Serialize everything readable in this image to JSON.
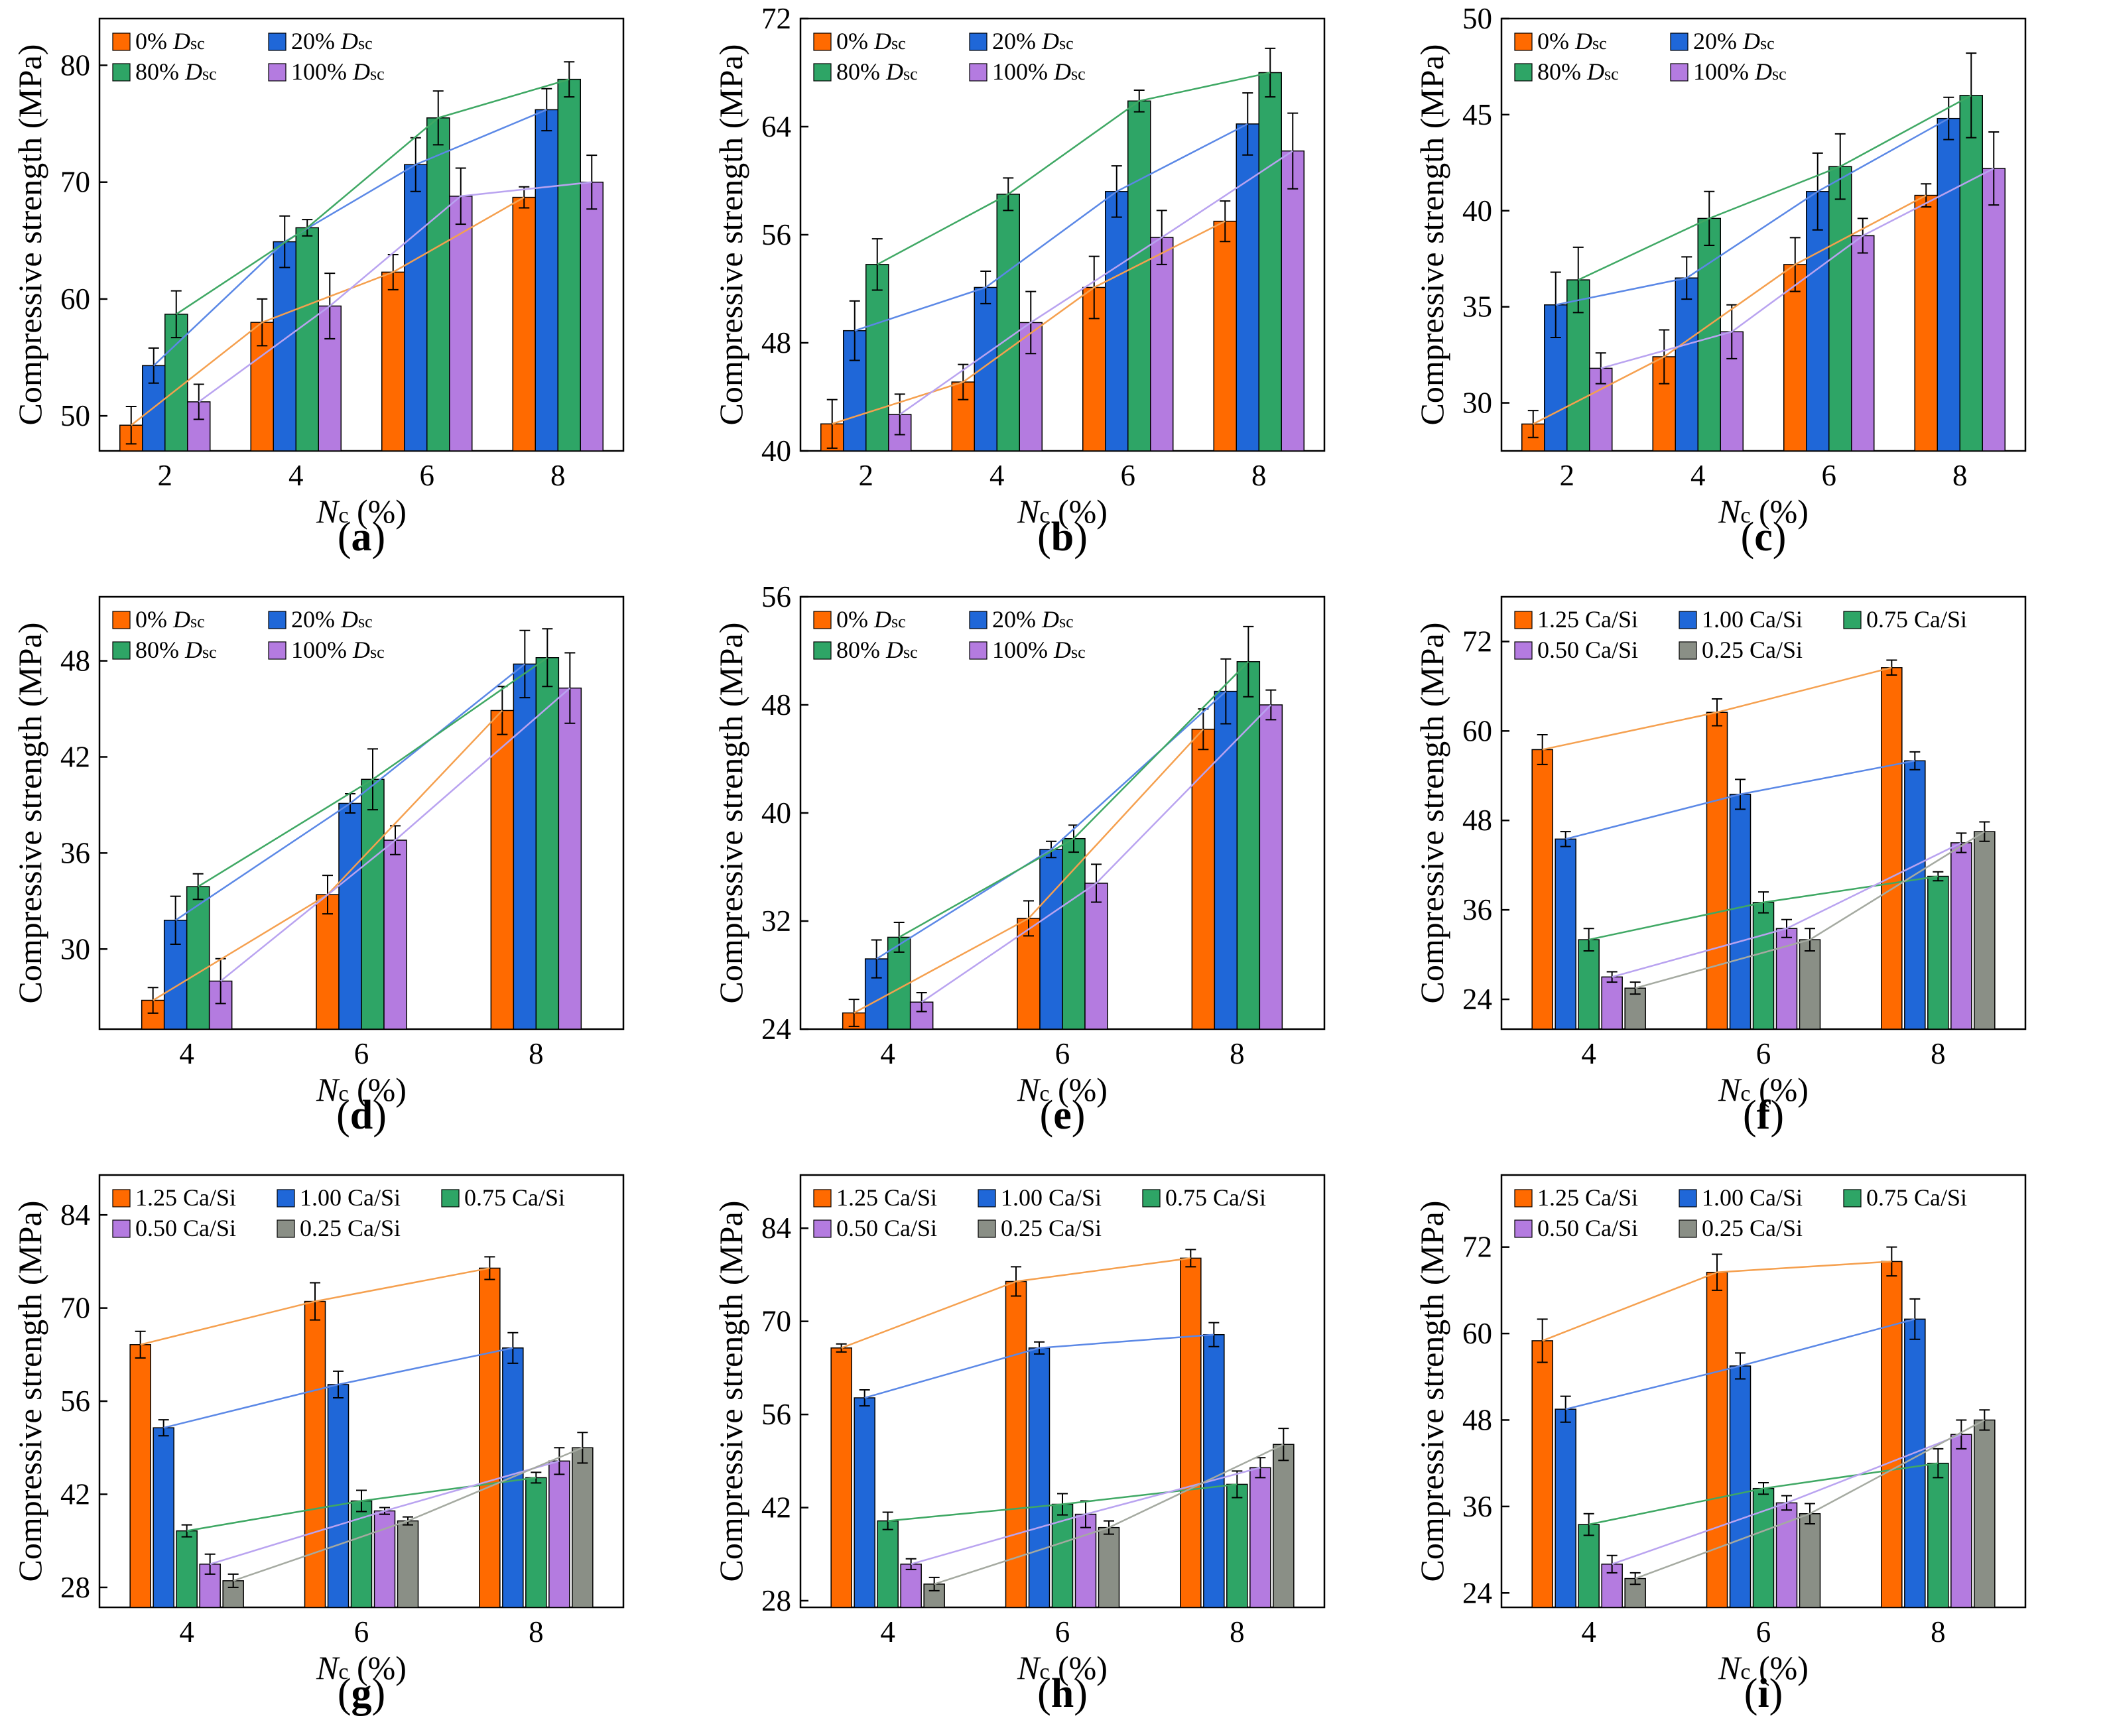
{
  "figure": {
    "title": ""
  },
  "colors": {
    "orange": "#FF6A00",
    "blue": "#1F67D8",
    "green": "#2EA566",
    "purple": "#B47BE0",
    "gray": "#8A8F86",
    "orange_line": "#F5A04F",
    "blue_line": "#5B88E6",
    "green_line": "#3FA864",
    "purple_line": "#B9A3F0",
    "gray_line": "#A5AAA1"
  },
  "chart_data": [
    {
      "id": "a",
      "type": "bar",
      "panel_label": "a",
      "ylabel": "Compressive strength (MPa)",
      "xlabel": "Nc (%)",
      "categories": [
        "2",
        "4",
        "6",
        "8"
      ],
      "ylim": [
        47,
        84
      ],
      "yticks": [
        50,
        60,
        70,
        80
      ],
      "ytick_labels": [
        "50",
        "60",
        "70",
        "80"
      ],
      "legend_cols": 2,
      "series": [
        {
          "name": "0% Dsc",
          "pre": "0% ",
          "ital": "D",
          "subs": "sc",
          "color": "orange",
          "line": "orange_line",
          "values": [
            49.2,
            58.0,
            62.3,
            68.7
          ],
          "errors": [
            1.6,
            2.0,
            1.5,
            0.9
          ]
        },
        {
          "name": "20% Dsc",
          "pre": "20% ",
          "ital": "D",
          "subs": "sc",
          "color": "blue",
          "line": "blue_line",
          "values": [
            54.3,
            64.9,
            71.5,
            76.2
          ],
          "errors": [
            1.5,
            2.2,
            2.3,
            1.8
          ]
        },
        {
          "name": "80% Dsc",
          "pre": "80% ",
          "ital": "D",
          "subs": "sc",
          "color": "green",
          "line": "green_line",
          "values": [
            58.7,
            66.1,
            75.5,
            78.8
          ],
          "errors": [
            2.0,
            0.7,
            2.3,
            1.5
          ]
        },
        {
          "name": "100% Dsc",
          "pre": "100% ",
          "ital": "D",
          "subs": "sc",
          "color": "purple",
          "line": "purple_line",
          "values": [
            51.2,
            59.4,
            68.8,
            70.0
          ],
          "errors": [
            1.5,
            2.8,
            2.4,
            2.3
          ]
        }
      ]
    },
    {
      "id": "b",
      "type": "bar",
      "panel_label": "b",
      "ylabel": "Compressive strength (MPa)",
      "xlabel": "Nc (%)",
      "categories": [
        "2",
        "4",
        "6",
        "8"
      ],
      "ylim": [
        40,
        72
      ],
      "yticks": [
        40,
        48,
        56,
        64,
        72
      ],
      "ytick_labels": [
        "40",
        "48",
        "56",
        "64",
        "72"
      ],
      "legend_cols": 2,
      "series": [
        {
          "name": "0% Dsc",
          "pre": "0% ",
          "ital": "D",
          "subs": "sc",
          "color": "orange",
          "line": "orange_line",
          "values": [
            42.0,
            45.1,
            52.1,
            57.0
          ],
          "errors": [
            1.8,
            1.3,
            2.3,
            1.5
          ]
        },
        {
          "name": "20% Dsc",
          "pre": "20% ",
          "ital": "D",
          "subs": "sc",
          "color": "blue",
          "line": "blue_line",
          "values": [
            48.9,
            52.1,
            59.2,
            64.2
          ],
          "errors": [
            2.2,
            1.2,
            1.9,
            2.3
          ]
        },
        {
          "name": "80% Dsc",
          "pre": "80% ",
          "ital": "D",
          "subs": "sc",
          "color": "green",
          "line": "green_line",
          "values": [
            53.8,
            59.0,
            65.9,
            68.0
          ],
          "errors": [
            1.9,
            1.2,
            0.8,
            1.8
          ]
        },
        {
          "name": "100% Dsc",
          "pre": "100% ",
          "ital": "D",
          "subs": "sc",
          "color": "purple",
          "line": "purple_line",
          "values": [
            42.7,
            49.5,
            55.8,
            62.2
          ],
          "errors": [
            1.5,
            2.3,
            2.0,
            2.8
          ]
        }
      ]
    },
    {
      "id": "c",
      "type": "bar",
      "panel_label": "c",
      "ylabel": "Compressive strength (MPa)",
      "xlabel": "Nc (%)",
      "categories": [
        "2",
        "4",
        "6",
        "8"
      ],
      "ylim": [
        27.5,
        50
      ],
      "yticks": [
        30,
        35,
        40,
        45,
        50
      ],
      "ytick_labels": [
        "30",
        "35",
        "40",
        "45",
        "50"
      ],
      "legend_cols": 2,
      "series": [
        {
          "name": "0% Dsc",
          "pre": "0% ",
          "ital": "D",
          "subs": "sc",
          "color": "orange",
          "line": "orange_line",
          "values": [
            28.9,
            32.4,
            37.2,
            40.8
          ],
          "errors": [
            0.7,
            1.4,
            1.4,
            0.6
          ]
        },
        {
          "name": "20% Dsc",
          "pre": "20% ",
          "ital": "D",
          "subs": "sc",
          "color": "blue",
          "line": "blue_line",
          "values": [
            35.1,
            36.5,
            41.0,
            44.8
          ],
          "errors": [
            1.7,
            1.1,
            2.0,
            1.1
          ]
        },
        {
          "name": "80% Dsc",
          "pre": "80% ",
          "ital": "D",
          "subs": "sc",
          "color": "green",
          "line": "green_line",
          "values": [
            36.4,
            39.6,
            42.3,
            46.0
          ],
          "errors": [
            1.7,
            1.4,
            1.7,
            2.2
          ]
        },
        {
          "name": "100% Dsc",
          "pre": "100% ",
          "ital": "D",
          "subs": "sc",
          "color": "purple",
          "line": "purple_line",
          "values": [
            31.8,
            33.7,
            38.7,
            42.2
          ],
          "errors": [
            0.8,
            1.4,
            0.9,
            1.9
          ]
        }
      ]
    },
    {
      "id": "d",
      "type": "bar",
      "panel_label": "d",
      "ylabel": "Compressive strength (MPa)",
      "xlabel": "Nc (%)",
      "categories": [
        "4",
        "6",
        "8"
      ],
      "ylim": [
        25,
        52
      ],
      "yticks": [
        30,
        36,
        42,
        48
      ],
      "ytick_labels": [
        "30",
        "36",
        "42",
        "48"
      ],
      "legend_cols": 2,
      "series": [
        {
          "name": "0% Dsc",
          "pre": "0% ",
          "ital": "D",
          "subs": "sc",
          "color": "orange",
          "line": "orange_line",
          "values": [
            26.8,
            33.4,
            44.9
          ],
          "errors": [
            0.8,
            1.2,
            1.5
          ]
        },
        {
          "name": "20% Dsc",
          "pre": "20% ",
          "ital": "D",
          "subs": "sc",
          "color": "blue",
          "line": "blue_line",
          "values": [
            31.8,
            39.1,
            47.8
          ],
          "errors": [
            1.5,
            0.6,
            2.1
          ]
        },
        {
          "name": "80% Dsc",
          "pre": "80% ",
          "ital": "D",
          "subs": "sc",
          "color": "green",
          "line": "green_line",
          "values": [
            33.9,
            40.6,
            48.2
          ],
          "errors": [
            0.8,
            1.9,
            1.8
          ]
        },
        {
          "name": "100% Dsc",
          "pre": "100% ",
          "ital": "D",
          "subs": "sc",
          "color": "purple",
          "line": "purple_line",
          "values": [
            28.0,
            36.8,
            46.3
          ],
          "errors": [
            1.4,
            0.9,
            2.2
          ]
        }
      ]
    },
    {
      "id": "e",
      "type": "bar",
      "panel_label": "e",
      "ylabel": "Compressive strength (MPa)",
      "xlabel": "Nc (%)",
      "categories": [
        "4",
        "6",
        "8"
      ],
      "ylim": [
        24,
        56
      ],
      "yticks": [
        24,
        32,
        40,
        48,
        56
      ],
      "ytick_labels": [
        "24",
        "32",
        "40",
        "48",
        "56"
      ],
      "legend_cols": 2,
      "series": [
        {
          "name": "0% Dsc",
          "pre": "0% ",
          "ital": "D",
          "subs": "sc",
          "color": "orange",
          "line": "orange_line",
          "values": [
            25.2,
            32.2,
            46.2
          ],
          "errors": [
            1.0,
            1.3,
            1.5
          ]
        },
        {
          "name": "20% Dsc",
          "pre": "20% ",
          "ital": "D",
          "subs": "sc",
          "color": "blue",
          "line": "blue_line",
          "values": [
            29.2,
            37.3,
            49.0
          ],
          "errors": [
            1.4,
            0.6,
            2.4
          ]
        },
        {
          "name": "80% Dsc",
          "pre": "80% ",
          "ital": "D",
          "subs": "sc",
          "color": "green",
          "line": "green_line",
          "values": [
            30.8,
            38.1,
            51.2
          ],
          "errors": [
            1.1,
            1.0,
            2.6
          ]
        },
        {
          "name": "100% Dsc",
          "pre": "100% ",
          "ital": "D",
          "subs": "sc",
          "color": "purple",
          "line": "purple_line",
          "values": [
            26.0,
            34.8,
            48.0
          ],
          "errors": [
            0.7,
            1.4,
            1.1
          ]
        }
      ]
    },
    {
      "id": "f",
      "type": "bar",
      "panel_label": "f",
      "ylabel": "Compressive strength (MPa)",
      "xlabel": "Nc (%)",
      "categories": [
        "4",
        "6",
        "8"
      ],
      "ylim": [
        20,
        78
      ],
      "yticks": [
        24,
        36,
        48,
        60,
        72
      ],
      "ytick_labels": [
        "24",
        "36",
        "48",
        "60",
        "72"
      ],
      "legend_cols": 3,
      "series": [
        {
          "name": "1.25 Ca/Si",
          "pre": "1.25 Ca/Si",
          "color": "orange",
          "line": "orange_line",
          "values": [
            57.5,
            62.5,
            68.5
          ],
          "errors": [
            2.0,
            1.8,
            1.0
          ]
        },
        {
          "name": "1.00 Ca/Si",
          "pre": "1.00 Ca/Si",
          "color": "blue",
          "line": "blue_line",
          "values": [
            45.5,
            51.5,
            56.0
          ],
          "errors": [
            1.0,
            2.0,
            1.2
          ]
        },
        {
          "name": "0.75 Ca/Si",
          "pre": "0.75 Ca/Si",
          "color": "green",
          "line": "green_line",
          "values": [
            32.0,
            37.0,
            40.5
          ],
          "errors": [
            1.5,
            1.4,
            0.6
          ]
        },
        {
          "name": "0.50 Ca/Si",
          "pre": "0.50 Ca/Si",
          "color": "purple",
          "line": "purple_line",
          "values": [
            27.0,
            33.5,
            45.0
          ],
          "errors": [
            0.7,
            1.2,
            1.3
          ]
        },
        {
          "name": "0.25 Ca/Si",
          "pre": "0.25 Ca/Si",
          "color": "gray",
          "line": "gray_line",
          "values": [
            25.5,
            32.0,
            46.5
          ],
          "errors": [
            0.8,
            1.5,
            1.3
          ]
        }
      ]
    },
    {
      "id": "g",
      "type": "bar",
      "panel_label": "g",
      "ylabel": "Compressive strength (MPa)",
      "xlabel": "Nc (%)",
      "categories": [
        "4",
        "6",
        "8"
      ],
      "ylim": [
        25,
        90
      ],
      "yticks": [
        28,
        42,
        56,
        70,
        84
      ],
      "ytick_labels": [
        "28",
        "42",
        "56",
        "70",
        "84"
      ],
      "legend_cols": 3,
      "series": [
        {
          "name": "1.25 Ca/Si",
          "pre": "1.25 Ca/Si",
          "color": "orange",
          "line": "orange_line",
          "values": [
            64.5,
            71.0,
            76.0
          ],
          "errors": [
            2.0,
            2.8,
            1.7
          ]
        },
        {
          "name": "1.00 Ca/Si",
          "pre": "1.00 Ca/Si",
          "color": "blue",
          "line": "blue_line",
          "values": [
            52.0,
            58.5,
            64.0
          ],
          "errors": [
            1.2,
            2.0,
            2.3
          ]
        },
        {
          "name": "0.75 Ca/Si",
          "pre": "0.75 Ca/Si",
          "color": "green",
          "line": "green_line",
          "values": [
            36.5,
            41.0,
            44.5
          ],
          "errors": [
            0.9,
            1.6,
            0.8
          ]
        },
        {
          "name": "0.50 Ca/Si",
          "pre": "0.50 Ca/Si",
          "color": "purple",
          "line": "purple_line",
          "values": [
            31.5,
            39.5,
            47.0
          ],
          "errors": [
            1.5,
            0.5,
            2.0
          ]
        },
        {
          "name": "0.25 Ca/Si",
          "pre": "0.25 Ca/Si",
          "color": "gray",
          "line": "gray_line",
          "values": [
            29.0,
            38.0,
            49.0
          ],
          "errors": [
            1.0,
            0.6,
            2.3
          ]
        }
      ]
    },
    {
      "id": "h",
      "type": "bar",
      "panel_label": "h",
      "ylabel": "Compressive strength (MPa)",
      "xlabel": "Nc (%)",
      "categories": [
        "4",
        "6",
        "8"
      ],
      "ylim": [
        27,
        92
      ],
      "yticks": [
        28,
        42,
        56,
        70,
        84
      ],
      "ytick_labels": [
        "28",
        "42",
        "56",
        "70",
        "84"
      ],
      "legend_cols": 3,
      "series": [
        {
          "name": "1.25 Ca/Si",
          "pre": "1.25 Ca/Si",
          "color": "orange",
          "line": "orange_line",
          "values": [
            66.0,
            76.0,
            79.5
          ],
          "errors": [
            0.6,
            2.2,
            1.3
          ]
        },
        {
          "name": "1.00 Ca/Si",
          "pre": "1.00 Ca/Si",
          "color": "blue",
          "line": "blue_line",
          "values": [
            58.5,
            66.0,
            68.0
          ],
          "errors": [
            1.2,
            0.9,
            1.8
          ]
        },
        {
          "name": "0.75 Ca/Si",
          "pre": "0.75 Ca/Si",
          "color": "green",
          "line": "green_line",
          "values": [
            40.0,
            42.5,
            45.5
          ],
          "errors": [
            1.3,
            1.6,
            2.0
          ]
        },
        {
          "name": "0.50 Ca/Si",
          "pre": "0.50 Ca/Si",
          "color": "purple",
          "line": "purple_line",
          "values": [
            33.5,
            41.0,
            48.0
          ],
          "errors": [
            0.8,
            2.0,
            1.5
          ]
        },
        {
          "name": "0.25 Ca/Si",
          "pre": "0.25 Ca/Si",
          "color": "gray",
          "line": "gray_line",
          "values": [
            30.5,
            39.0,
            51.5
          ],
          "errors": [
            1.0,
            1.0,
            2.4
          ]
        }
      ]
    },
    {
      "id": "i",
      "type": "bar",
      "panel_label": "i",
      "ylabel": "Compressive strength (MPa)",
      "xlabel": "Nc (%)",
      "categories": [
        "4",
        "6",
        "8"
      ],
      "ylim": [
        22,
        82
      ],
      "yticks": [
        24,
        36,
        48,
        60,
        72
      ],
      "ytick_labels": [
        "24",
        "36",
        "48",
        "60",
        "72"
      ],
      "legend_cols": 3,
      "series": [
        {
          "name": "1.25 Ca/Si",
          "pre": "1.25 Ca/Si",
          "color": "orange",
          "line": "orange_line",
          "values": [
            59.0,
            68.5,
            70.0
          ],
          "errors": [
            3.0,
            2.5,
            2.0
          ]
        },
        {
          "name": "1.00 Ca/Si",
          "pre": "1.00 Ca/Si",
          "color": "blue",
          "line": "blue_line",
          "values": [
            49.5,
            55.5,
            62.0
          ],
          "errors": [
            1.8,
            1.8,
            2.8
          ]
        },
        {
          "name": "0.75 Ca/Si",
          "pre": "0.75 Ca/Si",
          "color": "green",
          "line": "green_line",
          "values": [
            33.5,
            38.5,
            42.0
          ],
          "errors": [
            1.5,
            0.8,
            2.0
          ]
        },
        {
          "name": "0.50 Ca/Si",
          "pre": "0.50 Ca/Si",
          "color": "purple",
          "line": "purple_line",
          "values": [
            28.0,
            36.5,
            46.0
          ],
          "errors": [
            1.2,
            1.0,
            2.0
          ]
        },
        {
          "name": "0.25 Ca/Si",
          "pre": "0.25 Ca/Si",
          "color": "gray",
          "line": "gray_line",
          "values": [
            26.0,
            35.0,
            48.0
          ],
          "errors": [
            0.8,
            1.4,
            1.4
          ]
        }
      ]
    }
  ]
}
